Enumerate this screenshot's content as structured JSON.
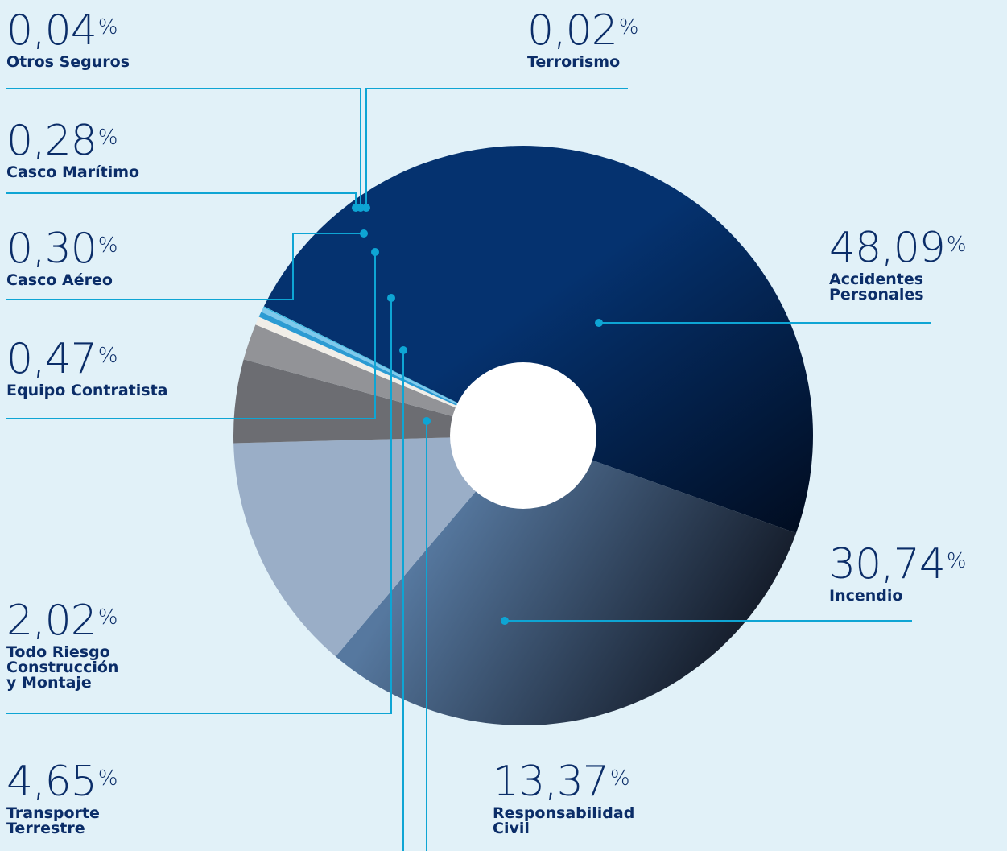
{
  "percent_symbol": "%",
  "chart_data": {
    "type": "pie",
    "variant": "donut",
    "unit": "%",
    "decimal_separator": ",",
    "slices": [
      {
        "label": "Accidentes\nPersonales",
        "value": 48.09,
        "display": "48,09",
        "color": "#05326f",
        "color_end": "#010c1f"
      },
      {
        "label": "Incendio",
        "value": 30.74,
        "display": "30,74",
        "color": "#56789f",
        "color_end": "#151d2b"
      },
      {
        "label": "Responsabilidad\nCivil",
        "value": 13.37,
        "display": "13,37",
        "color": "#9aaec7"
      },
      {
        "label": "Transporte\nTerrestre",
        "value": 4.65,
        "display": "4,65",
        "color": "#6c6d72"
      },
      {
        "label": "Todo Riesgo\nConstrucción\ny Montaje",
        "value": 2.02,
        "display": "2,02",
        "color": "#929397"
      },
      {
        "label": "Equipo Contratista",
        "value": 0.47,
        "display": "0,47",
        "color": "#f1eee8"
      },
      {
        "label": "Casco Aéreo",
        "value": 0.3,
        "display": "0,30",
        "color": "#2c9bd3"
      },
      {
        "label": "Casco Marítimo",
        "value": 0.28,
        "display": "0,28",
        "color": "#7fc9ec"
      },
      {
        "label": "Otros Seguros",
        "value": 0.04,
        "display": "0,04",
        "color": "#1fb0dc"
      },
      {
        "label": "Terrorismo",
        "value": 0.02,
        "display": "0,02",
        "color": "#44c0e6"
      }
    ],
    "leader_color": "#0ea5d4",
    "title": "",
    "xlabel": "",
    "ylabel": ""
  }
}
